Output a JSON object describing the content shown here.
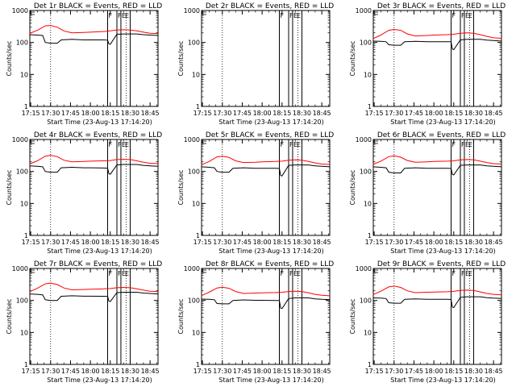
{
  "chart_data": [
    {
      "type": "line",
      "title": "Det 1r BLACK = Events, RED = LLD",
      "xlabel": "Start Time (23-Aug-13 17:14:20)",
      "ylabel": "Counts/sec",
      "yscale": "log",
      "ylim": [
        1,
        1000
      ],
      "xticks": [
        "17:15",
        "17:30",
        "17:45",
        "18:00",
        "18:15",
        "18:30",
        "18:45"
      ],
      "yticks": [
        "1",
        "10",
        "100",
        "1000"
      ],
      "flags": [
        "F",
        "F",
        "E",
        "E"
      ],
      "series": [
        {
          "name": "Events",
          "color": "#000000",
          "x": [
            "17:14",
            "17:20",
            "17:24",
            "17:26",
            "17:30",
            "17:35",
            "17:38",
            "17:46",
            "17:55",
            "18:00",
            "18:10",
            "18:13",
            "18:14",
            "18:15",
            "18:20",
            "18:25",
            "18:30",
            "18:35",
            "18:40",
            "18:45",
            "18:51"
          ],
          "y": [
            175,
            170,
            165,
            100,
            95,
            95,
            120,
            125,
            120,
            120,
            120,
            118,
            90,
            88,
            180,
            185,
            185,
            185,
            175,
            170,
            165
          ]
        },
        {
          "name": "LLD",
          "color": "#ff0000",
          "x": [
            "17:14",
            "17:20",
            "17:26",
            "17:30",
            "17:35",
            "17:40",
            "17:46",
            "17:55",
            "18:00",
            "18:10",
            "18:15",
            "18:20",
            "18:25",
            "18:30",
            "18:35",
            "18:40",
            "18:45",
            "18:51"
          ],
          "y": [
            190,
            240,
            330,
            340,
            300,
            230,
            200,
            205,
            210,
            220,
            230,
            245,
            250,
            245,
            230,
            210,
            195,
            190
          ]
        }
      ]
    },
    {
      "type": "line",
      "title": "Det 2r BLACK = Events, RED = LLD",
      "xlabel": "Start Time (23-Aug-13 17:14:20)",
      "ylabel": "Counts/sec",
      "yscale": "log",
      "ylim": [
        1,
        1000
      ],
      "xticks": [
        "17:15",
        "17:30",
        "17:45",
        "18:00",
        "18:15",
        "18:30",
        "18:45"
      ],
      "yticks": [
        "1",
        "10",
        "100",
        "1000"
      ],
      "flags": [
        "F",
        "F",
        "E",
        "E"
      ],
      "series": []
    },
    {
      "type": "line",
      "title": "Det 3r BLACK = Events, RED = LLD",
      "xlabel": "Start Time (23-Aug-13 17:14:20)",
      "ylabel": "Counts/sec",
      "yscale": "log",
      "ylim": [
        1,
        1000
      ],
      "xticks": [
        "17:15",
        "17:30",
        "17:45",
        "18:00",
        "18:15",
        "18:30",
        "18:45"
      ],
      "yticks": [
        "1",
        "10",
        "100",
        "1000"
      ],
      "flags": [
        "F",
        "F",
        "E",
        "E"
      ],
      "series": [
        {
          "name": "Events",
          "color": "#000000",
          "x": [
            "17:14",
            "17:20",
            "17:24",
            "17:26",
            "17:30",
            "17:35",
            "17:38",
            "17:46",
            "17:55",
            "18:00",
            "18:10",
            "18:13",
            "18:14",
            "18:15",
            "18:20",
            "18:25",
            "18:30",
            "18:35",
            "18:40",
            "18:45",
            "18:51"
          ],
          "y": [
            110,
            108,
            105,
            85,
            82,
            82,
            105,
            108,
            105,
            106,
            106,
            105,
            62,
            60,
            120,
            125,
            125,
            125,
            118,
            115,
            110
          ]
        },
        {
          "name": "LLD",
          "color": "#ff0000",
          "x": [
            "17:14",
            "17:20",
            "17:26",
            "17:30",
            "17:35",
            "17:40",
            "17:46",
            "17:55",
            "18:00",
            "18:10",
            "18:15",
            "18:20",
            "18:25",
            "18:30",
            "18:35",
            "18:40",
            "18:45",
            "18:51"
          ],
          "y": [
            130,
            170,
            240,
            255,
            240,
            185,
            160,
            165,
            170,
            175,
            180,
            195,
            200,
            195,
            175,
            155,
            140,
            135
          ]
        }
      ]
    },
    {
      "type": "line",
      "title": "Det 4r BLACK = Events, RED = LLD",
      "xlabel": "Start Time (23-Aug-13 17:14:20)",
      "ylabel": "Counts/sec",
      "yscale": "log",
      "ylim": [
        1,
        1000
      ],
      "xticks": [
        "17:15",
        "17:30",
        "17:45",
        "18:00",
        "18:15",
        "18:30",
        "18:45"
      ],
      "yticks": [
        "1",
        "10",
        "100",
        "1000"
      ],
      "flags": [
        "F",
        "F",
        "E",
        "E"
      ],
      "series": [
        {
          "name": "Events",
          "color": "#000000",
          "x": [
            "17:14",
            "17:20",
            "17:24",
            "17:26",
            "17:30",
            "17:35",
            "17:38",
            "17:46",
            "17:55",
            "18:00",
            "18:10",
            "18:13",
            "18:14",
            "18:15",
            "18:20",
            "18:25",
            "18:30",
            "18:35",
            "18:40",
            "18:45",
            "18:51"
          ],
          "y": [
            150,
            145,
            140,
            100,
            95,
            95,
            130,
            135,
            130,
            130,
            128,
            126,
            85,
            82,
            160,
            165,
            165,
            165,
            155,
            150,
            145
          ]
        },
        {
          "name": "LLD",
          "color": "#ff0000",
          "x": [
            "17:14",
            "17:20",
            "17:26",
            "17:30",
            "17:35",
            "17:40",
            "17:46",
            "17:55",
            "18:00",
            "18:10",
            "18:15",
            "18:20",
            "18:25",
            "18:30",
            "18:35",
            "18:40",
            "18:45",
            "18:51"
          ],
          "y": [
            170,
            215,
            300,
            320,
            290,
            225,
            200,
            205,
            210,
            215,
            220,
            235,
            240,
            235,
            215,
            195,
            180,
            175
          ]
        }
      ]
    },
    {
      "type": "line",
      "title": "Det 5r BLACK = Events, RED = LLD",
      "xlabel": "Start Time (23-Aug-13 17:14:20)",
      "ylabel": "Counts/sec",
      "yscale": "log",
      "ylim": [
        1,
        1000
      ],
      "xticks": [
        "17:15",
        "17:30",
        "17:45",
        "18:00",
        "18:15",
        "18:30",
        "18:45"
      ],
      "yticks": [
        "1",
        "10",
        "100",
        "1000"
      ],
      "flags": [
        "F",
        "F",
        "E",
        "E"
      ],
      "series": [
        {
          "name": "Events",
          "color": "#000000",
          "x": [
            "17:14",
            "17:20",
            "17:24",
            "17:26",
            "17:30",
            "17:35",
            "17:38",
            "17:46",
            "17:55",
            "18:00",
            "18:10",
            "18:13",
            "18:14",
            "18:15",
            "18:20",
            "18:25",
            "18:30",
            "18:35",
            "18:40",
            "18:45",
            "18:51"
          ],
          "y": [
            140,
            135,
            130,
            100,
            95,
            95,
            125,
            130,
            126,
            126,
            125,
            124,
            75,
            72,
            155,
            160,
            160,
            160,
            150,
            145,
            140
          ]
        },
        {
          "name": "LLD",
          "color": "#ff0000",
          "x": [
            "17:14",
            "17:20",
            "17:26",
            "17:30",
            "17:35",
            "17:40",
            "17:46",
            "17:55",
            "18:00",
            "18:10",
            "18:15",
            "18:20",
            "18:25",
            "18:30",
            "18:35",
            "18:40",
            "18:45",
            "18:51"
          ],
          "y": [
            160,
            205,
            285,
            300,
            275,
            215,
            190,
            195,
            200,
            205,
            210,
            225,
            230,
            225,
            205,
            185,
            170,
            165
          ]
        }
      ]
    },
    {
      "type": "line",
      "title": "Det 6r BLACK = Events, RED = LLD",
      "xlabel": "Start Time (23-Aug-13 17:14:20)",
      "ylabel": "Counts/sec",
      "yscale": "log",
      "ylim": [
        1,
        1000
      ],
      "xticks": [
        "17:15",
        "17:30",
        "17:45",
        "18:00",
        "18:15",
        "18:30",
        "18:45"
      ],
      "yticks": [
        "1",
        "10",
        "100",
        "1000"
      ],
      "flags": [
        "F",
        "F",
        "E",
        "E"
      ],
      "series": [
        {
          "name": "Events",
          "color": "#000000",
          "x": [
            "17:14",
            "17:20",
            "17:24",
            "17:26",
            "17:30",
            "17:35",
            "17:38",
            "17:46",
            "17:55",
            "18:00",
            "18:10",
            "18:13",
            "18:14",
            "18:15",
            "18:20",
            "18:25",
            "18:30",
            "18:35",
            "18:40",
            "18:45",
            "18:51"
          ],
          "y": [
            140,
            135,
            130,
            95,
            90,
            90,
            125,
            130,
            126,
            126,
            125,
            124,
            80,
            78,
            155,
            160,
            160,
            160,
            150,
            145,
            140
          ]
        },
        {
          "name": "LLD",
          "color": "#ff0000",
          "x": [
            "17:14",
            "17:20",
            "17:26",
            "17:30",
            "17:35",
            "17:40",
            "17:46",
            "17:55",
            "18:00",
            "18:10",
            "18:15",
            "18:20",
            "18:25",
            "18:30",
            "18:35",
            "18:40",
            "18:45",
            "18:51"
          ],
          "y": [
            165,
            210,
            290,
            310,
            280,
            220,
            195,
            200,
            205,
            210,
            215,
            230,
            235,
            230,
            210,
            190,
            175,
            170
          ]
        }
      ]
    },
    {
      "type": "line",
      "title": "Det 7r BLACK = Events, RED = LLD",
      "xlabel": "Start Time (23-Aug-13 17:14:20)",
      "ylabel": "Counts/sec",
      "yscale": "log",
      "ylim": [
        1,
        1000
      ],
      "xticks": [
        "17:15",
        "17:30",
        "17:45",
        "18:00",
        "18:15",
        "18:30",
        "18:45"
      ],
      "yticks": [
        "1",
        "10",
        "100",
        "1000"
      ],
      "flags": [
        "F",
        "F",
        "E",
        "E"
      ],
      "series": [
        {
          "name": "Events",
          "color": "#000000",
          "x": [
            "17:14",
            "17:20",
            "17:24",
            "17:26",
            "17:30",
            "17:35",
            "17:38",
            "17:46",
            "17:55",
            "18:00",
            "18:10",
            "18:13",
            "18:14",
            "18:15",
            "18:20",
            "18:25",
            "18:30",
            "18:35",
            "18:40",
            "18:45",
            "18:51"
          ],
          "y": [
            160,
            155,
            150,
            105,
            100,
            100,
            135,
            140,
            136,
            136,
            135,
            134,
            95,
            92,
            175,
            180,
            180,
            180,
            170,
            165,
            160
          ]
        },
        {
          "name": "LLD",
          "color": "#ff0000",
          "x": [
            "17:14",
            "17:20",
            "17:26",
            "17:30",
            "17:35",
            "17:40",
            "17:46",
            "17:55",
            "18:00",
            "18:10",
            "18:15",
            "18:20",
            "18:25",
            "18:30",
            "18:35",
            "18:40",
            "18:45",
            "18:51"
          ],
          "y": [
            185,
            240,
            330,
            350,
            315,
            245,
            215,
            220,
            225,
            230,
            235,
            250,
            255,
            250,
            230,
            210,
            195,
            190
          ]
        }
      ]
    },
    {
      "type": "line",
      "title": "Det 8r BLACK = Events, RED = LLD",
      "xlabel": "Start Time (23-Aug-13 17:14:20)",
      "ylabel": "Counts/sec",
      "yscale": "log",
      "ylim": [
        1,
        1000
      ],
      "xticks": [
        "17:15",
        "17:30",
        "17:45",
        "18:00",
        "18:15",
        "18:30",
        "18:45"
      ],
      "yticks": [
        "1",
        "10",
        "100",
        "1000"
      ],
      "flags": [
        "F",
        "F",
        "E",
        "E"
      ],
      "series": [
        {
          "name": "Events",
          "color": "#000000",
          "x": [
            "17:14",
            "17:20",
            "17:24",
            "17:26",
            "17:30",
            "17:35",
            "17:38",
            "17:46",
            "17:55",
            "18:00",
            "18:10",
            "18:13",
            "18:14",
            "18:15",
            "18:20",
            "18:25",
            "18:30",
            "18:35",
            "18:40",
            "18:45",
            "18:51"
          ],
          "y": [
            110,
            108,
            105,
            80,
            78,
            78,
            100,
            104,
            101,
            101,
            100,
            99,
            58,
            56,
            115,
            120,
            120,
            120,
            112,
            108,
            105
          ]
        },
        {
          "name": "LLD",
          "color": "#ff0000",
          "x": [
            "17:14",
            "17:20",
            "17:26",
            "17:30",
            "17:35",
            "17:40",
            "17:46",
            "17:55",
            "18:00",
            "18:10",
            "18:15",
            "18:20",
            "18:25",
            "18:30",
            "18:35",
            "18:40",
            "18:45",
            "18:51"
          ],
          "y": [
            140,
            180,
            245,
            260,
            240,
            190,
            165,
            170,
            172,
            176,
            180,
            190,
            195,
            190,
            172,
            155,
            145,
            140
          ]
        }
      ]
    },
    {
      "type": "line",
      "title": "Det 9r BLACK = Events, RED = LLD",
      "xlabel": "Start Time (23-Aug-13 17:14:20)",
      "ylabel": "Counts/sec",
      "yscale": "log",
      "ylim": [
        1,
        1000
      ],
      "xticks": [
        "17:15",
        "17:30",
        "17:45",
        "18:00",
        "18:15",
        "18:30",
        "18:45"
      ],
      "yticks": [
        "1",
        "10",
        "100",
        "1000"
      ],
      "flags": [
        "F",
        "F",
        "E",
        "E"
      ],
      "series": [
        {
          "name": "Events",
          "color": "#000000",
          "x": [
            "17:14",
            "17:20",
            "17:24",
            "17:26",
            "17:30",
            "17:35",
            "17:38",
            "17:46",
            "17:55",
            "18:00",
            "18:10",
            "18:13",
            "18:14",
            "18:15",
            "18:20",
            "18:25",
            "18:30",
            "18:35",
            "18:40",
            "18:45",
            "18:51"
          ],
          "y": [
            120,
            118,
            115,
            85,
            82,
            82,
            108,
            112,
            109,
            109,
            108,
            107,
            62,
            60,
            125,
            130,
            130,
            130,
            122,
            118,
            115
          ]
        },
        {
          "name": "LLD",
          "color": "#ff0000",
          "x": [
            "17:14",
            "17:20",
            "17:26",
            "17:30",
            "17:35",
            "17:40",
            "17:46",
            "17:55",
            "18:00",
            "18:10",
            "18:15",
            "18:20",
            "18:25",
            "18:30",
            "18:35",
            "18:40",
            "18:45",
            "18:51"
          ],
          "y": [
            150,
            195,
            265,
            280,
            255,
            200,
            175,
            180,
            183,
            187,
            192,
            205,
            210,
            205,
            185,
            165,
            155,
            150
          ]
        }
      ]
    }
  ]
}
